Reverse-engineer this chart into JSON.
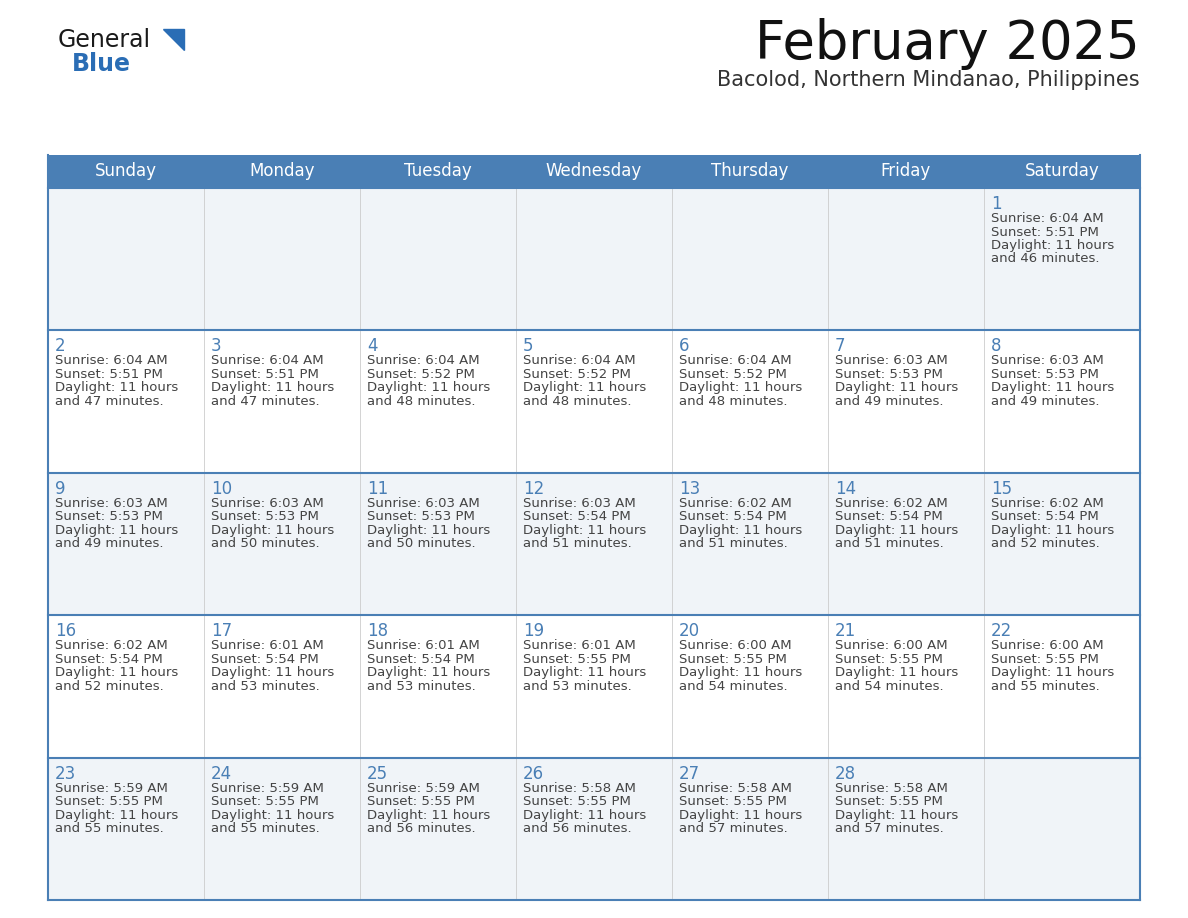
{
  "title": "February 2025",
  "subtitle": "Bacolod, Northern Mindanao, Philippines",
  "header_color": "#4a7fb5",
  "header_text_color": "#ffffff",
  "cell_bg_white": "#ffffff",
  "cell_bg_gray": "#f0f4f8",
  "cell_border_color": "#4a7fb5",
  "cell_divider_color": "#cccccc",
  "day_number_color": "#4a7fb5",
  "text_color": "#444444",
  "days_of_week": [
    "Sunday",
    "Monday",
    "Tuesday",
    "Wednesday",
    "Thursday",
    "Friday",
    "Saturday"
  ],
  "calendar_data": [
    [
      null,
      null,
      null,
      null,
      null,
      null,
      {
        "day": 1,
        "sunrise": "6:04 AM",
        "sunset": "5:51 PM",
        "daylight": "11 hours",
        "daylight2": "and 46 minutes."
      }
    ],
    [
      {
        "day": 2,
        "sunrise": "6:04 AM",
        "sunset": "5:51 PM",
        "daylight": "11 hours",
        "daylight2": "and 47 minutes."
      },
      {
        "day": 3,
        "sunrise": "6:04 AM",
        "sunset": "5:51 PM",
        "daylight": "11 hours",
        "daylight2": "and 47 minutes."
      },
      {
        "day": 4,
        "sunrise": "6:04 AM",
        "sunset": "5:52 PM",
        "daylight": "11 hours",
        "daylight2": "and 48 minutes."
      },
      {
        "day": 5,
        "sunrise": "6:04 AM",
        "sunset": "5:52 PM",
        "daylight": "11 hours",
        "daylight2": "and 48 minutes."
      },
      {
        "day": 6,
        "sunrise": "6:04 AM",
        "sunset": "5:52 PM",
        "daylight": "11 hours",
        "daylight2": "and 48 minutes."
      },
      {
        "day": 7,
        "sunrise": "6:03 AM",
        "sunset": "5:53 PM",
        "daylight": "11 hours",
        "daylight2": "and 49 minutes."
      },
      {
        "day": 8,
        "sunrise": "6:03 AM",
        "sunset": "5:53 PM",
        "daylight": "11 hours",
        "daylight2": "and 49 minutes."
      }
    ],
    [
      {
        "day": 9,
        "sunrise": "6:03 AM",
        "sunset": "5:53 PM",
        "daylight": "11 hours",
        "daylight2": "and 49 minutes."
      },
      {
        "day": 10,
        "sunrise": "6:03 AM",
        "sunset": "5:53 PM",
        "daylight": "11 hours",
        "daylight2": "and 50 minutes."
      },
      {
        "day": 11,
        "sunrise": "6:03 AM",
        "sunset": "5:53 PM",
        "daylight": "11 hours",
        "daylight2": "and 50 minutes."
      },
      {
        "day": 12,
        "sunrise": "6:03 AM",
        "sunset": "5:54 PM",
        "daylight": "11 hours",
        "daylight2": "and 51 minutes."
      },
      {
        "day": 13,
        "sunrise": "6:02 AM",
        "sunset": "5:54 PM",
        "daylight": "11 hours",
        "daylight2": "and 51 minutes."
      },
      {
        "day": 14,
        "sunrise": "6:02 AM",
        "sunset": "5:54 PM",
        "daylight": "11 hours",
        "daylight2": "and 51 minutes."
      },
      {
        "day": 15,
        "sunrise": "6:02 AM",
        "sunset": "5:54 PM",
        "daylight": "11 hours",
        "daylight2": "and 52 minutes."
      }
    ],
    [
      {
        "day": 16,
        "sunrise": "6:02 AM",
        "sunset": "5:54 PM",
        "daylight": "11 hours",
        "daylight2": "and 52 minutes."
      },
      {
        "day": 17,
        "sunrise": "6:01 AM",
        "sunset": "5:54 PM",
        "daylight": "11 hours",
        "daylight2": "and 53 minutes."
      },
      {
        "day": 18,
        "sunrise": "6:01 AM",
        "sunset": "5:54 PM",
        "daylight": "11 hours",
        "daylight2": "and 53 minutes."
      },
      {
        "day": 19,
        "sunrise": "6:01 AM",
        "sunset": "5:55 PM",
        "daylight": "11 hours",
        "daylight2": "and 53 minutes."
      },
      {
        "day": 20,
        "sunrise": "6:00 AM",
        "sunset": "5:55 PM",
        "daylight": "11 hours",
        "daylight2": "and 54 minutes."
      },
      {
        "day": 21,
        "sunrise": "6:00 AM",
        "sunset": "5:55 PM",
        "daylight": "11 hours",
        "daylight2": "and 54 minutes."
      },
      {
        "day": 22,
        "sunrise": "6:00 AM",
        "sunset": "5:55 PM",
        "daylight": "11 hours",
        "daylight2": "and 55 minutes."
      }
    ],
    [
      {
        "day": 23,
        "sunrise": "5:59 AM",
        "sunset": "5:55 PM",
        "daylight": "11 hours",
        "daylight2": "and 55 minutes."
      },
      {
        "day": 24,
        "sunrise": "5:59 AM",
        "sunset": "5:55 PM",
        "daylight": "11 hours",
        "daylight2": "and 55 minutes."
      },
      {
        "day": 25,
        "sunrise": "5:59 AM",
        "sunset": "5:55 PM",
        "daylight": "11 hours",
        "daylight2": "and 56 minutes."
      },
      {
        "day": 26,
        "sunrise": "5:58 AM",
        "sunset": "5:55 PM",
        "daylight": "11 hours",
        "daylight2": "and 56 minutes."
      },
      {
        "day": 27,
        "sunrise": "5:58 AM",
        "sunset": "5:55 PM",
        "daylight": "11 hours",
        "daylight2": "and 57 minutes."
      },
      {
        "day": 28,
        "sunrise": "5:58 AM",
        "sunset": "5:55 PM",
        "daylight": "11 hours",
        "daylight2": "and 57 minutes."
      },
      null
    ]
  ],
  "logo_general_color": "#1a1a1a",
  "logo_blue_color": "#2a6db5",
  "title_fontsize": 38,
  "subtitle_fontsize": 15,
  "header_fontsize": 12,
  "day_num_fontsize": 12,
  "cell_text_fontsize": 9.5
}
